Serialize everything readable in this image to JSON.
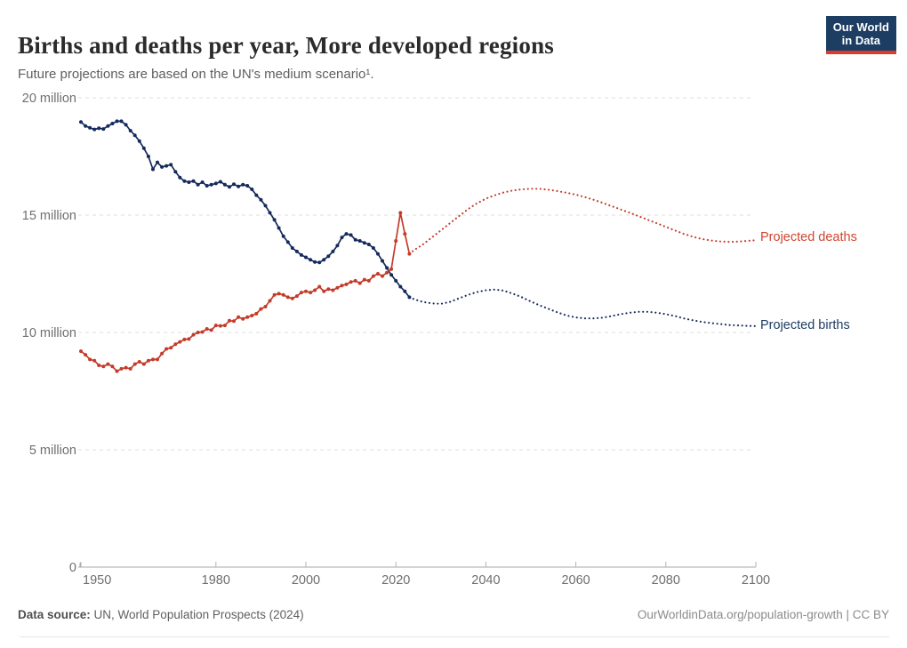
{
  "header": {
    "title": "Births and deaths per year, More developed regions",
    "subtitle": "Future projections are based on the UN's medium scenario¹.",
    "logo_line1": "Our World",
    "logo_line2": "in Data"
  },
  "footer": {
    "source_label": "Data source:",
    "source_value": "UN, World Population Prospects (2024)",
    "credit": "OurWorldinData.org/population-growth | CC BY"
  },
  "chart_data": {
    "type": "line",
    "title": "Births and deaths per year, More developed regions",
    "xlabel": "",
    "ylabel": "",
    "unit": "million",
    "x_axis": {
      "range": [
        1950,
        2100
      ],
      "ticks": [
        1950,
        1980,
        2000,
        2020,
        2040,
        2060,
        2080,
        2100
      ],
      "tick_labels": [
        "1950",
        "1980",
        "2000",
        "2020",
        "2040",
        "2060",
        "2080",
        "2100"
      ]
    },
    "y_axis": {
      "range": [
        0,
        20
      ],
      "ticks": [
        0,
        5,
        10,
        15,
        20
      ],
      "tick_labels": [
        "0",
        "5 million",
        "10 million",
        "15 million",
        "20 million"
      ],
      "grid": true
    },
    "colors": {
      "births": "#152a5c",
      "deaths": "#c43b2a",
      "births_label": "#1d3d63",
      "deaths_label": "#cf4631",
      "gridline": "#dcdcdc",
      "axis": "#a7a7a7",
      "tick": "#b3b3b3",
      "axis_text": "#6e6e6e"
    },
    "annotations": [
      {
        "label": "Projected deaths",
        "series": "deaths_projected",
        "value_at_label": 14.0
      },
      {
        "label": "Projected births",
        "series": "births_projected",
        "value_at_label": 10.3
      }
    ],
    "series": [
      {
        "name": "Births (historical)",
        "key": "births_historical",
        "style": "solid",
        "markers": true,
        "color": "#152a5c",
        "points": [
          [
            1950,
            18.97
          ],
          [
            1951,
            18.8
          ],
          [
            1952,
            18.72
          ],
          [
            1953,
            18.65
          ],
          [
            1954,
            18.7
          ],
          [
            1955,
            18.67
          ],
          [
            1956,
            18.8
          ],
          [
            1957,
            18.9
          ],
          [
            1958,
            19.0
          ],
          [
            1959,
            19.0
          ],
          [
            1960,
            18.85
          ],
          [
            1961,
            18.6
          ],
          [
            1962,
            18.4
          ],
          [
            1963,
            18.15
          ],
          [
            1964,
            17.85
          ],
          [
            1965,
            17.5
          ],
          [
            1966,
            16.95
          ],
          [
            1967,
            17.25
          ],
          [
            1968,
            17.05
          ],
          [
            1969,
            17.1
          ],
          [
            1970,
            17.15
          ],
          [
            1971,
            16.85
          ],
          [
            1972,
            16.6
          ],
          [
            1973,
            16.45
          ],
          [
            1974,
            16.4
          ],
          [
            1975,
            16.45
          ],
          [
            1976,
            16.3
          ],
          [
            1977,
            16.4
          ],
          [
            1978,
            16.25
          ],
          [
            1979,
            16.3
          ],
          [
            1980,
            16.35
          ],
          [
            1981,
            16.42
          ],
          [
            1982,
            16.3
          ],
          [
            1983,
            16.2
          ],
          [
            1984,
            16.32
          ],
          [
            1985,
            16.22
          ],
          [
            1986,
            16.3
          ],
          [
            1987,
            16.25
          ],
          [
            1988,
            16.1
          ],
          [
            1989,
            15.85
          ],
          [
            1990,
            15.65
          ],
          [
            1991,
            15.4
          ],
          [
            1992,
            15.1
          ],
          [
            1993,
            14.8
          ],
          [
            1994,
            14.45
          ],
          [
            1995,
            14.1
          ],
          [
            1996,
            13.85
          ],
          [
            1997,
            13.6
          ],
          [
            1998,
            13.45
          ],
          [
            1999,
            13.3
          ],
          [
            2000,
            13.2
          ],
          [
            2001,
            13.1
          ],
          [
            2002,
            13.0
          ],
          [
            2003,
            12.98
          ],
          [
            2004,
            13.1
          ],
          [
            2005,
            13.25
          ],
          [
            2006,
            13.45
          ],
          [
            2007,
            13.7
          ],
          [
            2008,
            14.05
          ],
          [
            2009,
            14.2
          ],
          [
            2010,
            14.15
          ],
          [
            2011,
            13.95
          ],
          [
            2012,
            13.9
          ],
          [
            2013,
            13.82
          ],
          [
            2014,
            13.75
          ],
          [
            2015,
            13.6
          ],
          [
            2016,
            13.35
          ],
          [
            2017,
            13.05
          ],
          [
            2018,
            12.75
          ],
          [
            2019,
            12.45
          ],
          [
            2020,
            12.2
          ],
          [
            2021,
            11.95
          ],
          [
            2022,
            11.75
          ],
          [
            2023,
            11.5
          ]
        ]
      },
      {
        "name": "Births (projected)",
        "key": "births_projected",
        "style": "dotted",
        "markers": false,
        "color": "#152a5c",
        "points": [
          [
            2023,
            11.5
          ],
          [
            2024,
            11.42
          ],
          [
            2026,
            11.3
          ],
          [
            2028,
            11.24
          ],
          [
            2030,
            11.22
          ],
          [
            2032,
            11.3
          ],
          [
            2034,
            11.45
          ],
          [
            2036,
            11.6
          ],
          [
            2038,
            11.72
          ],
          [
            2040,
            11.8
          ],
          [
            2042,
            11.83
          ],
          [
            2044,
            11.78
          ],
          [
            2046,
            11.65
          ],
          [
            2048,
            11.5
          ],
          [
            2050,
            11.32
          ],
          [
            2052,
            11.15
          ],
          [
            2054,
            11.0
          ],
          [
            2056,
            10.85
          ],
          [
            2058,
            10.72
          ],
          [
            2060,
            10.64
          ],
          [
            2062,
            10.6
          ],
          [
            2064,
            10.6
          ],
          [
            2066,
            10.63
          ],
          [
            2068,
            10.7
          ],
          [
            2070,
            10.78
          ],
          [
            2072,
            10.84
          ],
          [
            2074,
            10.88
          ],
          [
            2076,
            10.88
          ],
          [
            2078,
            10.84
          ],
          [
            2080,
            10.78
          ],
          [
            2082,
            10.7
          ],
          [
            2084,
            10.6
          ],
          [
            2086,
            10.52
          ],
          [
            2088,
            10.45
          ],
          [
            2090,
            10.4
          ],
          [
            2092,
            10.36
          ],
          [
            2094,
            10.32
          ],
          [
            2096,
            10.3
          ],
          [
            2098,
            10.28
          ],
          [
            2100,
            10.27
          ]
        ]
      },
      {
        "name": "Deaths (historical)",
        "key": "deaths_historical",
        "style": "solid",
        "markers": true,
        "color": "#c43b2a",
        "points": [
          [
            1950,
            9.2
          ],
          [
            1951,
            9.05
          ],
          [
            1952,
            8.85
          ],
          [
            1953,
            8.8
          ],
          [
            1954,
            8.6
          ],
          [
            1955,
            8.55
          ],
          [
            1956,
            8.65
          ],
          [
            1957,
            8.55
          ],
          [
            1958,
            8.35
          ],
          [
            1959,
            8.45
          ],
          [
            1960,
            8.5
          ],
          [
            1961,
            8.45
          ],
          [
            1962,
            8.65
          ],
          [
            1963,
            8.75
          ],
          [
            1964,
            8.65
          ],
          [
            1965,
            8.8
          ],
          [
            1966,
            8.85
          ],
          [
            1967,
            8.85
          ],
          [
            1968,
            9.1
          ],
          [
            1969,
            9.3
          ],
          [
            1970,
            9.35
          ],
          [
            1971,
            9.5
          ],
          [
            1972,
            9.6
          ],
          [
            1973,
            9.7
          ],
          [
            1974,
            9.72
          ],
          [
            1975,
            9.9
          ],
          [
            1976,
            10.0
          ],
          [
            1977,
            10.02
          ],
          [
            1978,
            10.15
          ],
          [
            1979,
            10.1
          ],
          [
            1980,
            10.3
          ],
          [
            1981,
            10.28
          ],
          [
            1982,
            10.3
          ],
          [
            1983,
            10.5
          ],
          [
            1984,
            10.48
          ],
          [
            1985,
            10.65
          ],
          [
            1986,
            10.58
          ],
          [
            1987,
            10.65
          ],
          [
            1988,
            10.72
          ],
          [
            1989,
            10.8
          ],
          [
            1990,
            11.0
          ],
          [
            1991,
            11.1
          ],
          [
            1992,
            11.35
          ],
          [
            1993,
            11.6
          ],
          [
            1994,
            11.65
          ],
          [
            1995,
            11.6
          ],
          [
            1996,
            11.5
          ],
          [
            1997,
            11.45
          ],
          [
            1998,
            11.55
          ],
          [
            1999,
            11.7
          ],
          [
            2000,
            11.75
          ],
          [
            2001,
            11.7
          ],
          [
            2002,
            11.8
          ],
          [
            2003,
            11.95
          ],
          [
            2004,
            11.75
          ],
          [
            2005,
            11.85
          ],
          [
            2006,
            11.8
          ],
          [
            2007,
            11.9
          ],
          [
            2008,
            12.0
          ],
          [
            2009,
            12.05
          ],
          [
            2010,
            12.15
          ],
          [
            2011,
            12.2
          ],
          [
            2012,
            12.1
          ],
          [
            2013,
            12.25
          ],
          [
            2014,
            12.2
          ],
          [
            2015,
            12.4
          ],
          [
            2016,
            12.5
          ],
          [
            2017,
            12.4
          ],
          [
            2018,
            12.55
          ],
          [
            2019,
            12.7
          ],
          [
            2020,
            13.9
          ],
          [
            2021,
            15.1
          ],
          [
            2022,
            14.2
          ],
          [
            2023,
            13.35
          ]
        ]
      },
      {
        "name": "Deaths (projected)",
        "key": "deaths_projected",
        "style": "dotted",
        "markers": false,
        "color": "#c43b2a",
        "points": [
          [
            2023,
            13.35
          ],
          [
            2024,
            13.5
          ],
          [
            2026,
            13.75
          ],
          [
            2028,
            14.05
          ],
          [
            2030,
            14.35
          ],
          [
            2032,
            14.65
          ],
          [
            2034,
            14.95
          ],
          [
            2036,
            15.25
          ],
          [
            2038,
            15.5
          ],
          [
            2040,
            15.7
          ],
          [
            2042,
            15.85
          ],
          [
            2044,
            15.97
          ],
          [
            2046,
            16.05
          ],
          [
            2048,
            16.1
          ],
          [
            2050,
            16.12
          ],
          [
            2052,
            16.12
          ],
          [
            2054,
            16.08
          ],
          [
            2056,
            16.02
          ],
          [
            2058,
            15.95
          ],
          [
            2060,
            15.87
          ],
          [
            2062,
            15.77
          ],
          [
            2064,
            15.65
          ],
          [
            2066,
            15.52
          ],
          [
            2068,
            15.38
          ],
          [
            2070,
            15.24
          ],
          [
            2072,
            15.1
          ],
          [
            2074,
            14.95
          ],
          [
            2076,
            14.8
          ],
          [
            2078,
            14.65
          ],
          [
            2080,
            14.5
          ],
          [
            2082,
            14.35
          ],
          [
            2084,
            14.2
          ],
          [
            2086,
            14.08
          ],
          [
            2088,
            13.98
          ],
          [
            2090,
            13.92
          ],
          [
            2092,
            13.88
          ],
          [
            2094,
            13.86
          ],
          [
            2096,
            13.87
          ],
          [
            2098,
            13.9
          ],
          [
            2100,
            13.93
          ]
        ]
      }
    ]
  }
}
